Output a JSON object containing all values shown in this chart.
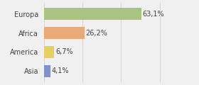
{
  "categories": [
    "Europa",
    "Africa",
    "America",
    "Asia"
  ],
  "values": [
    63.1,
    26.2,
    6.7,
    4.1
  ],
  "labels": [
    "63,1%",
    "26,2%",
    "6,7%",
    "4,1%"
  ],
  "bar_colors": [
    "#a8c480",
    "#e8aa78",
    "#e8d060",
    "#8090c8"
  ],
  "background_color": "#f0f0f0",
  "xlim": [
    0,
    85
  ],
  "bar_height": 0.65,
  "label_fontsize": 7,
  "category_fontsize": 7
}
